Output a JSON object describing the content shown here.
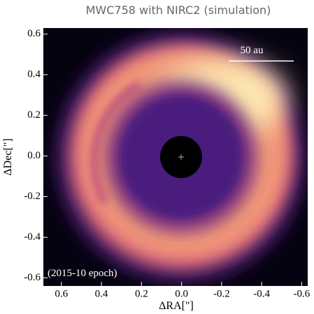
{
  "chart_data": {
    "type": "image",
    "title": "MWC758 with NIRC2 (simulation)",
    "x_label": "ΔRA[\"]",
    "y_label": "ΔDec[\"]",
    "annotations": [
      "50 au",
      "(2015-10 epoch)"
    ],
    "xlim": [
      0.69,
      -0.63
    ],
    "ylim": [
      -0.64,
      0.63
    ],
    "xticks": [
      0.6,
      0.4,
      0.2,
      {
        "value": 0,
        "label": "0.0"
      },
      -0.2,
      -0.4,
      -0.6
    ],
    "yticks": [
      -0.6,
      -0.4,
      -0.2,
      {
        "value": 0,
        "label": "0.0"
      },
      0.2,
      0.4,
      0.6
    ]
  }
}
